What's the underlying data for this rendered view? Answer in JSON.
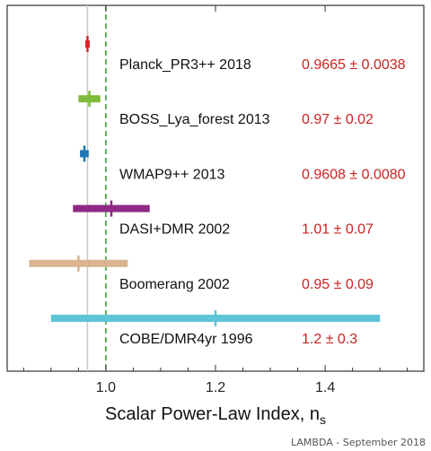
{
  "chart_data": {
    "type": "scatter",
    "title": "",
    "xlabel": "Scalar Power-Law Index, n",
    "xlabel_subscript": "s",
    "ylabel": "",
    "xlim": [
      0.82,
      1.58
    ],
    "xticks": [
      1.0,
      1.2,
      1.4
    ],
    "xtick_labels": [
      "1.0",
      "1.2",
      "1.4"
    ],
    "grid": false,
    "reference_lines": [
      {
        "x": 0.9665,
        "color": "#c8c8c8",
        "style": "solid"
      },
      {
        "x": 1.0,
        "color": "#2ca02c",
        "style": "dashed"
      }
    ],
    "series": [
      {
        "name": "Planck_PR3++ 2018",
        "value_text": "0.9665 ± 0.0038",
        "center": 0.9665,
        "lower": 0.9627,
        "upper": 0.9703,
        "color": "#d62728"
      },
      {
        "name": "BOSS_Lya_forest 2013",
        "value_text": "0.97 ± 0.02",
        "center": 0.97,
        "lower": 0.95,
        "upper": 0.99,
        "color": "#7fba3a"
      },
      {
        "name": "WMAP9++ 2013",
        "value_text": "0.9608 ± 0.0080",
        "center": 0.9608,
        "lower": 0.9528,
        "upper": 0.9688,
        "color": "#1f77b4"
      },
      {
        "name": "DASI+DMR 2002",
        "value_text": "1.01 ± 0.07",
        "center": 1.01,
        "lower": 0.94,
        "upper": 1.08,
        "color": "#8e2a86"
      },
      {
        "name": "Boomerang 2002",
        "value_text": "0.95 ± 0.09",
        "center": 0.95,
        "lower": 0.86,
        "upper": 1.04,
        "color": "#d9b48f"
      },
      {
        "name": "COBE/DMR4yr 1996",
        "value_text": "1.2 ± 0.3",
        "center": 1.2,
        "lower": 0.9,
        "upper": 1.5,
        "color": "#5ec5d8"
      }
    ],
    "value_color": "#cc2222"
  },
  "credit": "LAMBDA - September 2018"
}
